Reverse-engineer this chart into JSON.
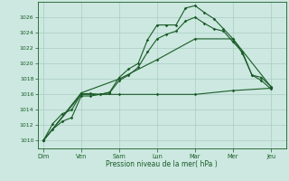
{
  "xlabel": "Pression niveau de la mer( hPa )",
  "bg_color": "#cce8e0",
  "grid_color": "#aaccC4",
  "line_color": "#1a5c28",
  "ylim": [
    1009.0,
    1028.0
  ],
  "yticks": [
    1010,
    1012,
    1014,
    1016,
    1018,
    1020,
    1022,
    1024,
    1026
  ],
  "xtick_labels": [
    "Dim",
    "Ven",
    "Sam",
    "Lun",
    "Mar",
    "Mer",
    "Jeu"
  ],
  "x_positions": [
    0,
    2,
    4,
    6,
    8,
    10,
    12
  ],
  "xlim": [
    -0.3,
    12.8
  ],
  "series1_x": [
    0,
    0.5,
    1.0,
    1.5,
    2.0,
    2.5,
    3.0,
    3.5,
    4.0,
    4.5,
    5.0,
    5.5,
    6.0,
    6.5,
    7.0,
    7.5,
    8.0,
    8.5,
    9.0,
    9.5,
    10.0,
    10.5,
    11.0,
    11.5,
    12.0
  ],
  "series1_y": [
    1010.0,
    1012.2,
    1013.5,
    1014.0,
    1016.1,
    1016.1,
    1016.0,
    1016.3,
    1018.2,
    1019.3,
    1020.0,
    1023.1,
    1025.0,
    1025.0,
    1025.0,
    1027.2,
    1027.5,
    1026.6,
    1025.8,
    1024.5,
    1023.2,
    1021.3,
    1018.5,
    1018.2,
    1017.0
  ],
  "series2_x": [
    0,
    0.5,
    1.0,
    1.5,
    2.0,
    2.5,
    3.0,
    3.5,
    4.0,
    4.5,
    5.0,
    5.5,
    6.0,
    6.5,
    7.0,
    7.5,
    8.0,
    8.5,
    9.0,
    9.5,
    10.0,
    10.5,
    11.0,
    11.5,
    12.0
  ],
  "series2_y": [
    1010.0,
    1011.5,
    1012.5,
    1013.0,
    1015.8,
    1015.8,
    1016.0,
    1016.2,
    1017.8,
    1018.5,
    1019.5,
    1021.5,
    1023.2,
    1023.8,
    1024.2,
    1025.5,
    1026.0,
    1025.2,
    1024.5,
    1024.2,
    1022.8,
    1021.5,
    1018.5,
    1017.8,
    1016.7
  ],
  "series3_x": [
    0,
    2,
    4,
    6,
    8,
    10,
    12
  ],
  "series3_y": [
    1010.0,
    1016.0,
    1016.0,
    1016.0,
    1016.0,
    1016.5,
    1016.8
  ],
  "series4_x": [
    0,
    2,
    4,
    6,
    8,
    10,
    12
  ],
  "series4_y": [
    1010.0,
    1016.2,
    1018.0,
    1020.5,
    1023.2,
    1023.2,
    1017.0
  ]
}
